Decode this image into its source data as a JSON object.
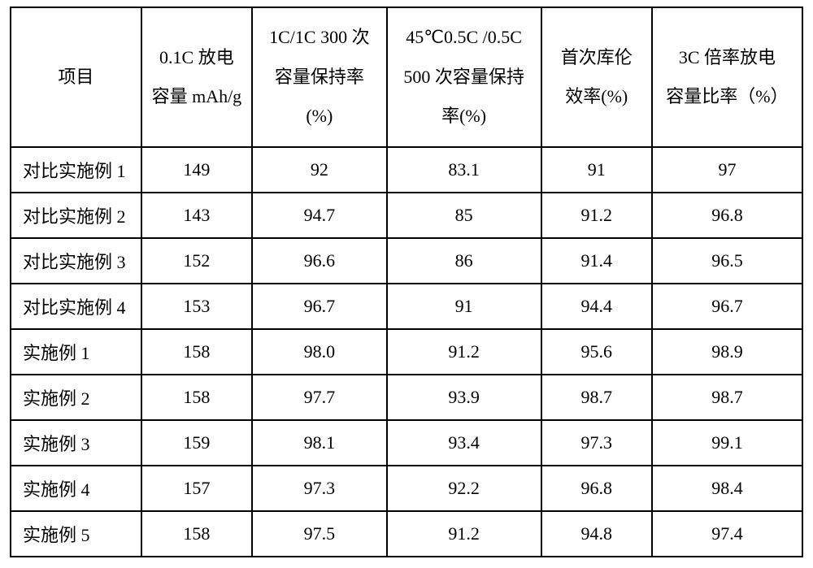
{
  "table": {
    "type": "table",
    "border_color": "#000000",
    "background_color": "#ffffff",
    "text_color": "#000000",
    "header_fontsize": 22,
    "cell_fontsize": 22,
    "columns": [
      {
        "key": "label",
        "header": "项目"
      },
      {
        "key": "c1",
        "header": "0.1C 放电\n容量 mAh/g"
      },
      {
        "key": "c2",
        "header": "1C/1C 300 次\n容量保持率\n(%)"
      },
      {
        "key": "c3",
        "header": "45℃0.5C /0.5C\n500 次容量保持\n率(%)"
      },
      {
        "key": "c4",
        "header": "首次库伦\n效率(%)"
      },
      {
        "key": "c5",
        "header": "3C 倍率放电\n容量比率（%）"
      }
    ],
    "rows": [
      {
        "label": "对比实施例 1",
        "c1": "149",
        "c2": "92",
        "c3": "83.1",
        "c4": "91",
        "c5": "97"
      },
      {
        "label": "对比实施例 2",
        "c1": "143",
        "c2": "94.7",
        "c3": "85",
        "c4": "91.2",
        "c5": "96.8"
      },
      {
        "label": "对比实施例 3",
        "c1": "152",
        "c2": "96.6",
        "c3": "86",
        "c4": "91.4",
        "c5": "96.5"
      },
      {
        "label": "对比实施例 4",
        "c1": "153",
        "c2": "96.7",
        "c3": "91",
        "c4": "94.4",
        "c5": "96.7"
      },
      {
        "label": "实施例 1",
        "c1": "158",
        "c2": "98.0",
        "c3": "91.2",
        "c4": "95.6",
        "c5": "98.9"
      },
      {
        "label": "实施例 2",
        "c1": "158",
        "c2": "97.7",
        "c3": "93.9",
        "c4": "98.7",
        "c5": "98.7"
      },
      {
        "label": "实施例 3",
        "c1": "159",
        "c2": "98.1",
        "c3": "93.4",
        "c4": "97.3",
        "c5": "99.1"
      },
      {
        "label": "实施例 4",
        "c1": "157",
        "c2": "97.3",
        "c3": "92.2",
        "c4": "96.8",
        "c5": "98.4"
      },
      {
        "label": "实施例 5",
        "c1": "158",
        "c2": "97.5",
        "c3": "91.2",
        "c4": "94.8",
        "c5": "97.4"
      }
    ],
    "col_widths_pct": [
      16.5,
      14,
      17,
      19.5,
      14,
      19
    ]
  }
}
